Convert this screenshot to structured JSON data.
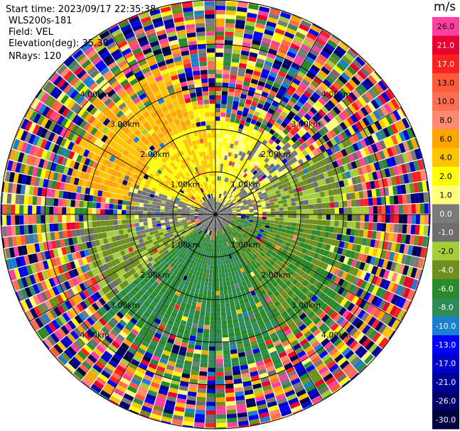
{
  "info": {
    "start_time": "Start time: 2023/09/17 22:35:38",
    "site": "WLS200s-181",
    "field": "Field: VEL",
    "elevation": "Elevation(deg): 35.30",
    "nrays": "NRays: 120"
  },
  "colorbar": {
    "unit": "m/s",
    "levels": [
      {
        "label": "26.0",
        "color": "#ff3f9f"
      },
      {
        "label": "21.0",
        "color": "#e8002e"
      },
      {
        "label": "17.0",
        "color": "#ff2020"
      },
      {
        "label": "13.0",
        "color": "#ff5a3a"
      },
      {
        "label": "10.0",
        "color": "#ff6e52"
      },
      {
        "label": "8.0",
        "color": "#ff8a70"
      },
      {
        "label": "6.0",
        "color": "#ffa400"
      },
      {
        "label": "4.0",
        "color": "#ffc400"
      },
      {
        "label": "2.0",
        "color": "#ffff00"
      },
      {
        "label": "1.0",
        "color": "#ffff7a"
      },
      {
        "label": "0.0",
        "color": "#7a7a7a"
      },
      {
        "label": "-1.0",
        "color": "#6e6e6e"
      },
      {
        "label": "-2.0",
        "color": "#a5cd3a"
      },
      {
        "label": "-4.0",
        "color": "#6e8e1e"
      },
      {
        "label": "-6.0",
        "color": "#2a8a2a"
      },
      {
        "label": "-8.0",
        "color": "#2e8b57"
      },
      {
        "label": "-10.0",
        "color": "#1a7fd0"
      },
      {
        "label": "-13.0",
        "color": "#0000ff"
      },
      {
        "label": "-17.0",
        "color": "#0000cc"
      },
      {
        "label": "-21.0",
        "color": "#000099"
      },
      {
        "label": "-26.0",
        "color": "#000066"
      },
      {
        "label": "-30.0",
        "color": "#000040"
      }
    ]
  },
  "chart_data": {
    "type": "heatmap",
    "projection": "polar PPI",
    "field": "VEL",
    "unit": "m/s",
    "range_rings_km": [
      1,
      2,
      3,
      4
    ],
    "ring_labels": [
      "1.00km",
      "2.00km",
      "3.00km",
      "4.00km"
    ],
    "spokes": 12,
    "nrays": 120,
    "sectors": [
      {
        "azimuth_from": 290,
        "azimuth_to": 360,
        "range_km": [
          0.4,
          2.6
        ],
        "velocity": 4.0
      },
      {
        "azimuth_from": 0,
        "azimuth_to": 45,
        "range_km": [
          0.3,
          2.2
        ],
        "velocity": 2.0
      },
      {
        "azimuth_from": 45,
        "azimuth_to": 90,
        "range_km": [
          0.4,
          2.5
        ],
        "velocity": 1.0
      },
      {
        "azimuth_from": 60,
        "azimuth_to": 95,
        "range_km": [
          1.2,
          3.6
        ],
        "velocity": -2.0
      },
      {
        "azimuth_from": 95,
        "azimuth_to": 180,
        "range_km": [
          0.4,
          3.8
        ],
        "velocity": -4.0
      },
      {
        "azimuth_from": 150,
        "azimuth_to": 230,
        "range_km": [
          0.5,
          3.8
        ],
        "velocity": -6.0
      },
      {
        "azimuth_from": 230,
        "azimuth_to": 270,
        "range_km": [
          0.6,
          3.2
        ],
        "velocity": -2.0
      },
      {
        "azimuth_from": 255,
        "azimuth_to": 290,
        "range_km": [
          0.4,
          2.0
        ],
        "velocity": 0.0
      },
      {
        "azimuth_from": 280,
        "azimuth_to": 345,
        "range_km": [
          2.0,
          3.9
        ],
        "velocity": 6.0
      }
    ]
  }
}
